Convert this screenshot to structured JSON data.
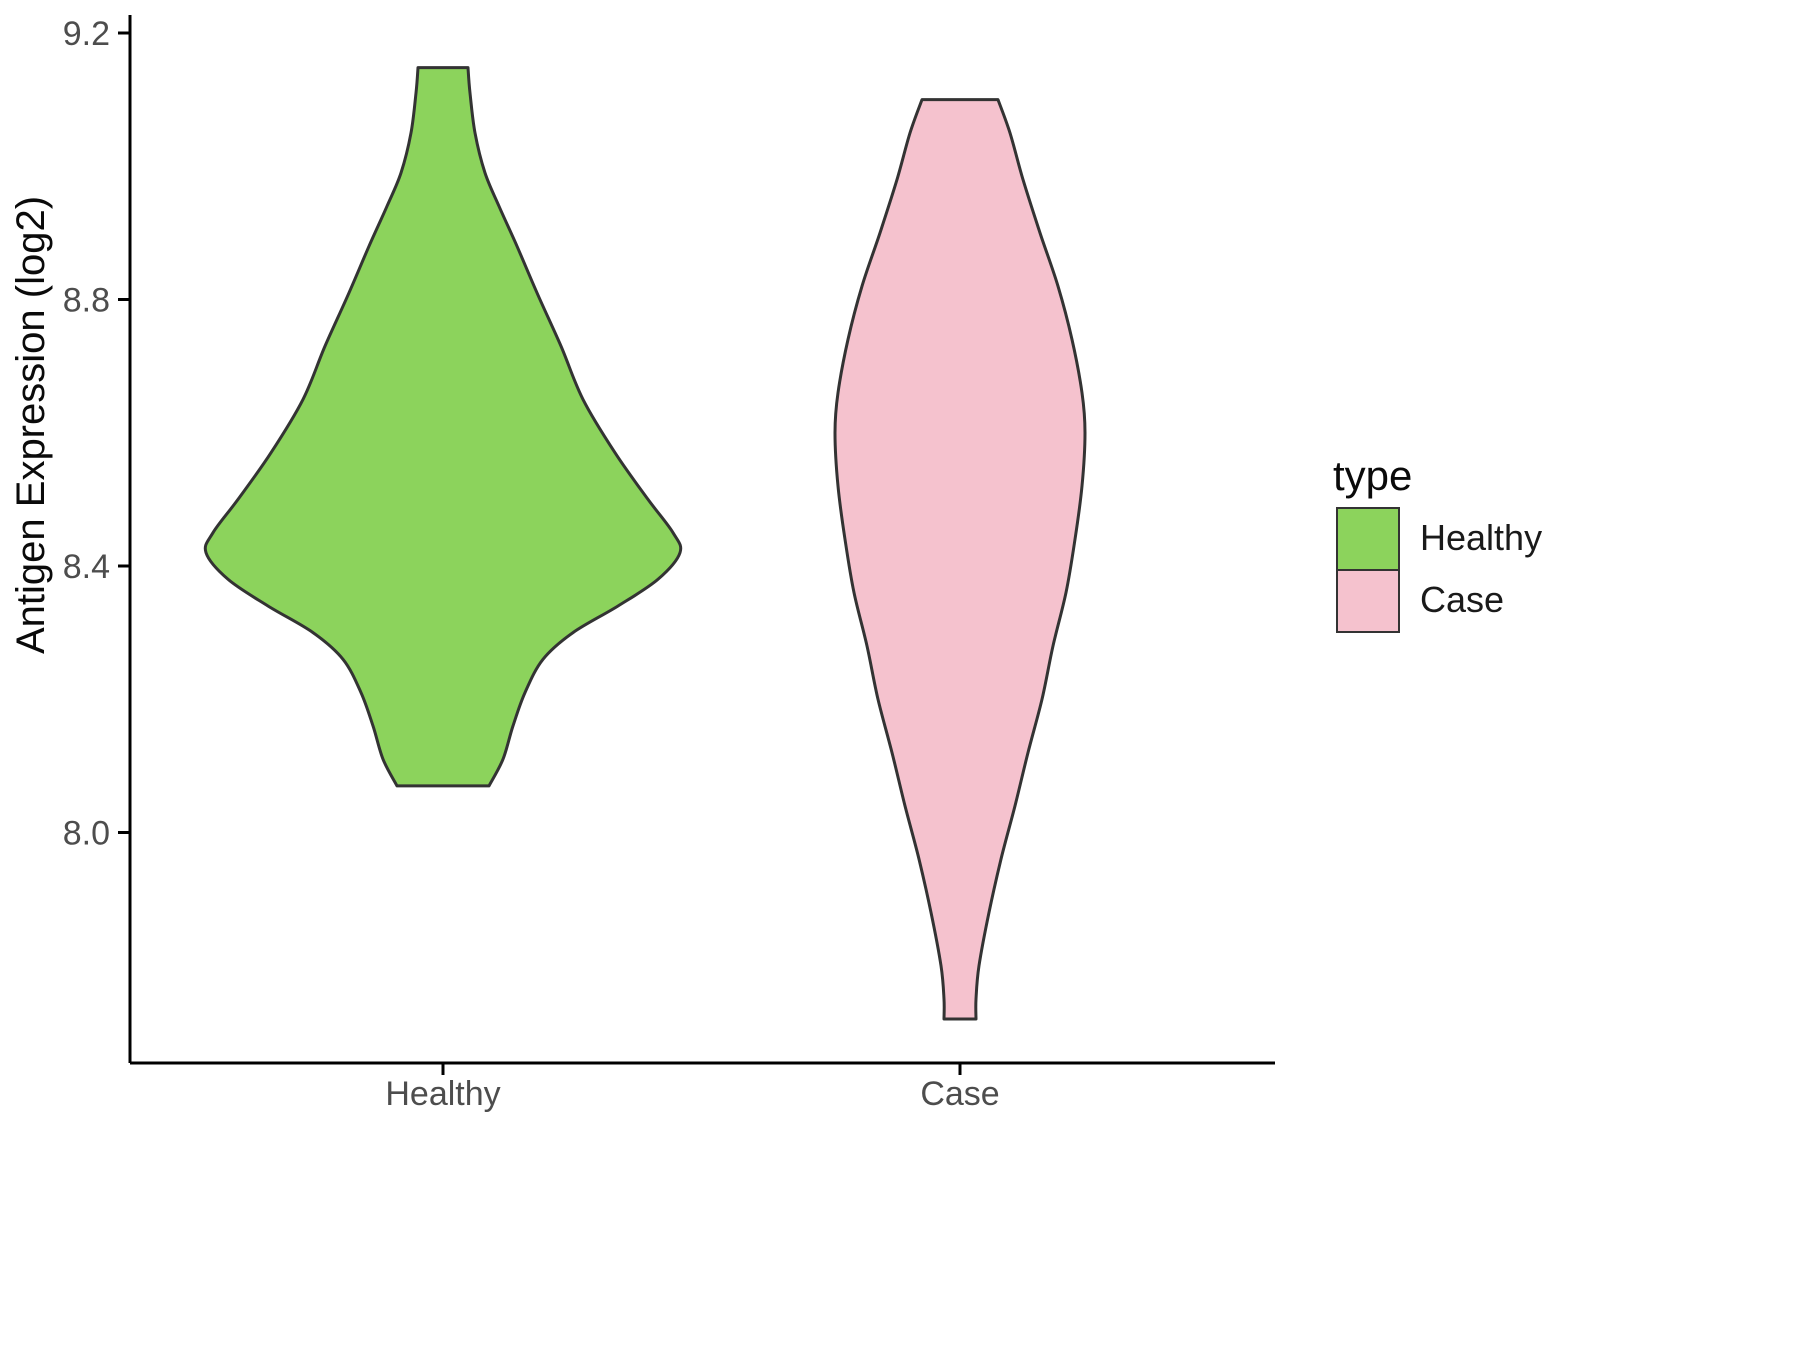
{
  "chart_data": {
    "type": "violin",
    "title": "",
    "xlabel": "",
    "ylabel": "Antigen Expression (log2)",
    "categories": [
      "Healthy",
      "Case"
    ],
    "y_ticks": [
      9.2,
      8.8,
      8.4,
      8.0
    ],
    "y_tick_labels": [
      "9.2",
      "8.8",
      "8.4",
      "8.0"
    ],
    "ylim": [
      7.6,
      9.25
    ],
    "grid": false,
    "legend": {
      "title": "type",
      "position": "right",
      "entries": [
        {
          "label": "Healthy",
          "color": "#8CD35C"
        },
        {
          "label": "Case",
          "color": "#F5C2CE"
        }
      ]
    },
    "series": [
      {
        "name": "Healthy",
        "color": "#8CD35C",
        "outline": "#333333",
        "value_range": [
          8.07,
          9.15
        ],
        "peak_value": 8.43,
        "profile": [
          [
            9.148,
            25
          ],
          [
            9.11,
            27
          ],
          [
            9.05,
            32
          ],
          [
            8.99,
            42
          ],
          [
            8.94,
            56
          ],
          [
            8.88,
            74
          ],
          [
            8.81,
            94
          ],
          [
            8.73,
            118
          ],
          [
            8.65,
            140
          ],
          [
            8.57,
            172
          ],
          [
            8.5,
            205
          ],
          [
            8.45,
            230
          ],
          [
            8.42,
            237
          ],
          [
            8.38,
            215
          ],
          [
            8.34,
            175
          ],
          [
            8.3,
            130
          ],
          [
            8.26,
            100
          ],
          [
            8.21,
            82
          ],
          [
            8.16,
            70
          ],
          [
            8.11,
            60
          ],
          [
            8.07,
            46
          ]
        ]
      },
      {
        "name": "Case",
        "color": "#F5C2CE",
        "outline": "#333333",
        "value_range": [
          7.72,
          9.1
        ],
        "peak_value": 8.6,
        "profile": [
          [
            9.1,
            38
          ],
          [
            9.05,
            50
          ],
          [
            8.98,
            63
          ],
          [
            8.9,
            80
          ],
          [
            8.82,
            98
          ],
          [
            8.74,
            112
          ],
          [
            8.66,
            122
          ],
          [
            8.6,
            125
          ],
          [
            8.52,
            122
          ],
          [
            8.44,
            115
          ],
          [
            8.36,
            106
          ],
          [
            8.28,
            93
          ],
          [
            8.2,
            82
          ],
          [
            8.12,
            68
          ],
          [
            8.04,
            55
          ],
          [
            7.96,
            41
          ],
          [
            7.88,
            29
          ],
          [
            7.8,
            19
          ],
          [
            7.75,
            16
          ],
          [
            7.72,
            16
          ]
        ]
      }
    ]
  },
  "colors": {
    "axis": "#000000",
    "tick_text": "#4D4D4D",
    "violin_outline": "#333333",
    "background": "#FFFFFF"
  }
}
